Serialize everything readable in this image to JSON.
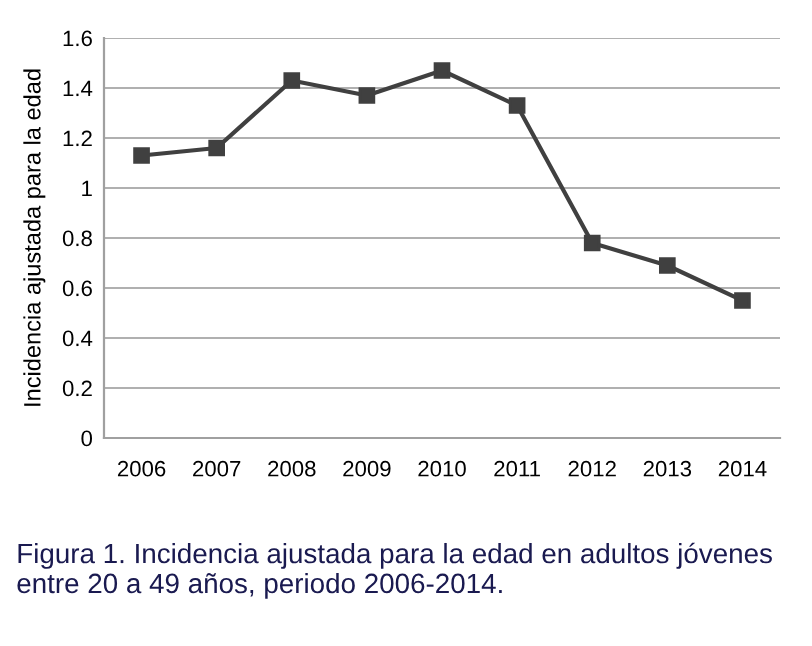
{
  "chart_data": {
    "type": "line",
    "ylabel": "Incidencia ajustada para la edad",
    "categories": [
      "2006",
      "2007",
      "2008",
      "2009",
      "2010",
      "2011",
      "2012",
      "2013",
      "2014"
    ],
    "series": [
      {
        "color": "#404040",
        "values": [
          1.13,
          1.16,
          1.43,
          1.37,
          1.47,
          1.33,
          0.78,
          0.69,
          0.55
        ]
      }
    ],
    "ylim": [
      0,
      1.6
    ],
    "yticks": [
      0,
      0.2,
      0.4,
      0.6,
      0.8,
      1,
      1.2,
      1.4,
      1.6
    ],
    "grid": "y",
    "marker": "square",
    "line_style": "solid",
    "annotations": [
      "Figura 1. Incidencia ajustada para la edad en adultos jóvenes entre 20 a 49 años, periodo 2006-2014."
    ]
  }
}
